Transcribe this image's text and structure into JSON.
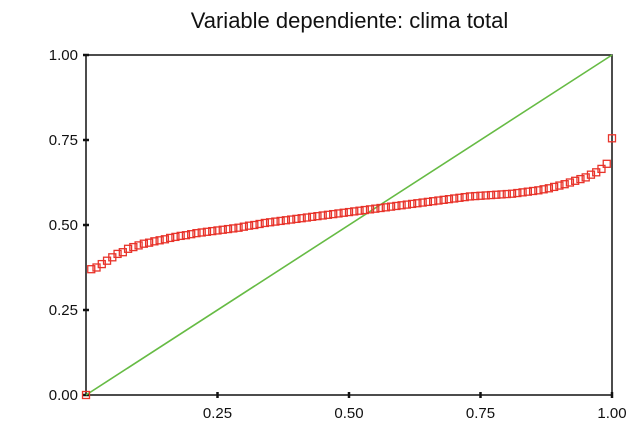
{
  "chart_data": {
    "type": "scatter",
    "title": "Variable dependiente: clima total",
    "xlabel": "",
    "ylabel": "",
    "xlim": [
      0,
      1
    ],
    "ylim": [
      0,
      1
    ],
    "xticks": [
      "0.25",
      "0.50",
      "0.75",
      "1.00"
    ],
    "yticks": [
      "0.00",
      "0.25",
      "0.50",
      "0.75",
      "1.00"
    ],
    "grid": false,
    "series": [
      {
        "kind": "reference-line",
        "color": "#66bb44",
        "x": [
          0,
          1
        ],
        "y": [
          0,
          1
        ]
      },
      {
        "kind": "points",
        "marker": "open-square",
        "color": "#e8332a",
        "x": [
          0.0,
          0.01,
          0.02,
          0.03,
          0.04,
          0.05,
          0.06,
          0.07,
          0.08,
          0.09,
          0.1,
          0.11,
          0.12,
          0.13,
          0.14,
          0.15,
          0.16,
          0.17,
          0.18,
          0.19,
          0.2,
          0.21,
          0.22,
          0.23,
          0.24,
          0.25,
          0.26,
          0.27,
          0.28,
          0.29,
          0.3,
          0.31,
          0.32,
          0.33,
          0.34,
          0.35,
          0.36,
          0.37,
          0.38,
          0.39,
          0.4,
          0.41,
          0.42,
          0.43,
          0.44,
          0.45,
          0.46,
          0.47,
          0.48,
          0.49,
          0.5,
          0.51,
          0.52,
          0.53,
          0.54,
          0.55,
          0.56,
          0.57,
          0.58,
          0.59,
          0.6,
          0.61,
          0.62,
          0.63,
          0.64,
          0.65,
          0.66,
          0.67,
          0.68,
          0.69,
          0.7,
          0.71,
          0.72,
          0.73,
          0.74,
          0.75,
          0.76,
          0.77,
          0.78,
          0.79,
          0.8,
          0.81,
          0.82,
          0.83,
          0.84,
          0.85,
          0.86,
          0.87,
          0.88,
          0.89,
          0.9,
          0.91,
          0.92,
          0.93,
          0.94,
          0.95,
          0.96,
          0.97,
          0.98,
          0.99,
          1.0
        ],
        "y": [
          0.0,
          0.37,
          0.375,
          0.385,
          0.395,
          0.405,
          0.415,
          0.42,
          0.43,
          0.435,
          0.44,
          0.445,
          0.448,
          0.452,
          0.455,
          0.458,
          0.462,
          0.465,
          0.468,
          0.47,
          0.473,
          0.476,
          0.478,
          0.48,
          0.482,
          0.484,
          0.486,
          0.488,
          0.49,
          0.492,
          0.495,
          0.498,
          0.5,
          0.503,
          0.506,
          0.508,
          0.51,
          0.512,
          0.514,
          0.516,
          0.518,
          0.52,
          0.522,
          0.524,
          0.526,
          0.528,
          0.53,
          0.532,
          0.534,
          0.536,
          0.538,
          0.54,
          0.542,
          0.544,
          0.546,
          0.548,
          0.55,
          0.552,
          0.554,
          0.556,
          0.558,
          0.56,
          0.562,
          0.564,
          0.566,
          0.568,
          0.57,
          0.572,
          0.574,
          0.576,
          0.578,
          0.58,
          0.582,
          0.584,
          0.585,
          0.586,
          0.587,
          0.588,
          0.589,
          0.59,
          0.591,
          0.592,
          0.594,
          0.596,
          0.598,
          0.6,
          0.602,
          0.605,
          0.608,
          0.612,
          0.616,
          0.62,
          0.625,
          0.63,
          0.635,
          0.64,
          0.648,
          0.655,
          0.665,
          0.68,
          0.755
        ]
      }
    ]
  }
}
